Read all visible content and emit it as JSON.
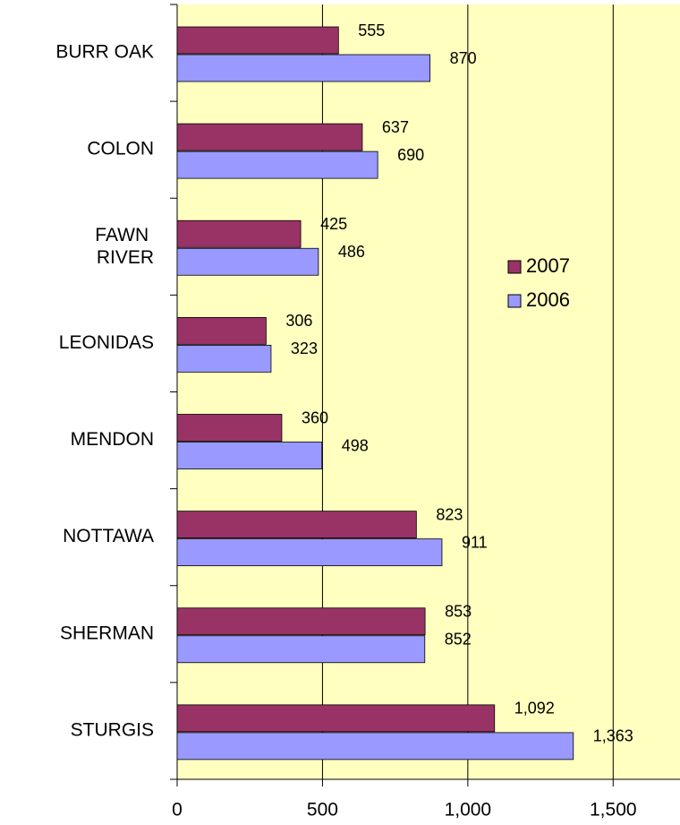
{
  "chart_data": {
    "type": "bar",
    "orientation": "horizontal",
    "categories": [
      "BURR OAK",
      "COLON",
      "FAWN RIVER",
      "LEONIDAS",
      "MENDON",
      "NOTTAWA",
      "SHERMAN",
      "STURGIS"
    ],
    "series": [
      {
        "name": "2007",
        "color": "#993366",
        "values": [
          555,
          637,
          425,
          306,
          360,
          823,
          853,
          1092
        ],
        "value_labels": [
          "555",
          "637",
          "425",
          "306",
          "360",
          "823",
          "853",
          "1,092"
        ]
      },
      {
        "name": "2006",
        "color": "#9999ff",
        "values": [
          870,
          690,
          486,
          323,
          498,
          911,
          852,
          1363
        ],
        "value_labels": [
          "870",
          "690",
          "486",
          "323",
          "498",
          "911",
          "852",
          "1,363"
        ]
      }
    ],
    "xlim": [
      0,
      1730
    ],
    "xticks": [
      0,
      500,
      {
        "value": 1000,
        "label": "1,000"
      },
      {
        "value": 1500,
        "label": "1,500"
      }
    ],
    "grid": true,
    "background": "#ffffc0",
    "legend": "right"
  }
}
